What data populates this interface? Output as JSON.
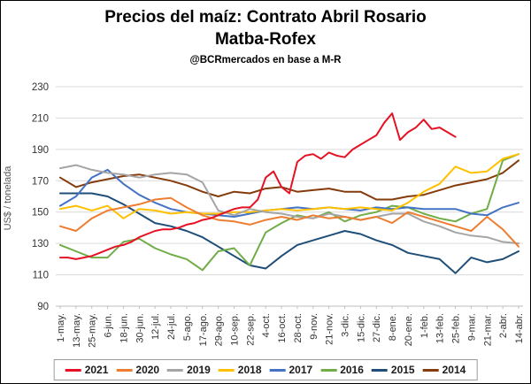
{
  "header": {
    "title_line1": "Precios del maíz: Contrato Abril Rosario",
    "title_line2": "Matba-Rofex",
    "subtitle": "@BCRmercados en base a M-R"
  },
  "colors": {
    "grid": "#d9d9d9",
    "axis": "#bfbfbf",
    "tick_label": "#333333",
    "axis_title": "#595959",
    "legend_border": "#9b9b9b"
  },
  "chart_data": {
    "type": "line",
    "title": "Precios del maíz: Contrato Abril Rosario Matba-Rofex",
    "subtitle": "@BCRmercados en base a M-R",
    "xlabel": "",
    "ylabel": "US$ / tonelada",
    "ylim": [
      90,
      230
    ],
    "yticks": [
      90,
      110,
      130,
      150,
      170,
      190,
      210,
      230
    ],
    "grid": "horizontal",
    "legend_position": "bottom",
    "x_categories": [
      "1-may.",
      "13-may.",
      "25-may.",
      "6-jun.",
      "18-jun.",
      "30-jun.",
      "12-jul.",
      "24-jul.",
      "5-ago.",
      "17-ago.",
      "29-ago.",
      "10-sep.",
      "22-sep.",
      "4-oct.",
      "16-oct.",
      "28-oct.",
      "9-nov.",
      "21-nov.",
      "3-dic.",
      "15-dic.",
      "27-dic.",
      "8-ene.",
      "20-ene.",
      "1-feb.",
      "13-feb.",
      "25-feb.",
      "9-mar.",
      "21-mar.",
      "2-abr.",
      "14-abr."
    ],
    "series": [
      {
        "name": "2021",
        "color": "#e61123",
        "interval_days": 6,
        "x_end": 0.8621,
        "values": [
          121,
          121,
          120,
          121,
          122,
          124,
          126,
          128,
          129,
          131,
          134,
          136,
          138,
          139,
          139,
          140,
          142,
          143,
          145,
          146,
          148,
          150,
          152,
          153,
          153,
          158,
          172,
          176,
          166,
          162,
          182,
          186,
          187,
          184,
          188,
          186,
          185,
          190,
          193,
          196,
          199,
          207,
          213,
          196,
          201,
          204,
          209,
          203,
          204,
          201,
          198
        ]
      },
      {
        "name": "2020",
        "color": "#ED7D31",
        "interval_days": 12,
        "x_end": 1,
        "values": [
          141,
          138,
          146,
          151,
          153,
          155,
          158,
          159,
          153,
          148,
          145,
          144,
          142,
          145,
          147,
          145,
          148,
          146,
          147,
          145,
          147,
          143,
          150,
          147,
          144,
          141,
          138,
          147,
          139,
          128
        ]
      },
      {
        "name": "2019",
        "color": "#A5A5A5",
        "interval_days": 12,
        "x_end": 1,
        "values": [
          178,
          180,
          177,
          175,
          174,
          172,
          174,
          175,
          174,
          169,
          151,
          148,
          152,
          150,
          149,
          147,
          146,
          149,
          147,
          145,
          147,
          149,
          149,
          144,
          141,
          137,
          135,
          134,
          131,
          130
        ]
      },
      {
        "name": "2018",
        "color": "#FFC000",
        "interval_days": 12,
        "x_end": 1,
        "values": [
          152,
          154,
          151,
          154,
          146,
          152,
          151,
          149,
          150,
          149,
          149,
          150,
          150,
          151,
          152,
          151,
          152,
          153,
          152,
          153,
          152,
          151,
          156,
          163,
          168,
          179,
          175,
          176,
          184,
          187
        ]
      },
      {
        "name": "2017",
        "color": "#4472C4",
        "interval_days": 12,
        "x_end": 1,
        "values": [
          154,
          160,
          172,
          177,
          168,
          161,
          156,
          152,
          150,
          149,
          148,
          147,
          149,
          151,
          152,
          153,
          152,
          153,
          152,
          151,
          153,
          152,
          153,
          152,
          152,
          152,
          149,
          148,
          153,
          156
        ]
      },
      {
        "name": "2016",
        "color": "#70AD47",
        "interval_days": 12,
        "x_end": 1,
        "values": [
          129,
          125,
          121,
          121,
          131,
          133,
          127,
          123,
          120,
          113,
          125,
          127,
          116,
          137,
          143,
          148,
          146,
          150,
          144,
          148,
          150,
          154,
          153,
          149,
          146,
          144,
          149,
          152,
          183,
          187
        ]
      },
      {
        "name": "2015",
        "color": "#1F4E79",
        "interval_days": 12,
        "x_end": 1,
        "values": [
          162,
          162,
          162,
          160,
          155,
          149,
          143,
          141,
          138,
          134,
          128,
          122,
          116,
          114,
          122,
          129,
          132,
          135,
          138,
          136,
          132,
          129,
          124,
          122,
          120,
          111,
          121,
          118,
          120,
          125
        ]
      },
      {
        "name": "2014",
        "color": "#843C0C",
        "interval_days": 12,
        "x_end": 1,
        "values": [
          172,
          166,
          169,
          171,
          173,
          174,
          172,
          170,
          167,
          163,
          160,
          163,
          162,
          165,
          166,
          163,
          164,
          165,
          163,
          163,
          158,
          158,
          160,
          161,
          164,
          167,
          169,
          171,
          175,
          183
        ]
      }
    ]
  }
}
